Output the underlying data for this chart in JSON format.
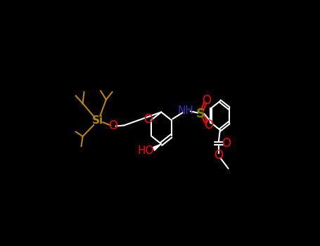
{
  "background_color": "#000000",
  "white": "#ffffff",
  "red": "#ff0000",
  "blue": "#3333bb",
  "olive": "#808000",
  "gold": "#b8860b",
  "lw": 1.5,
  "xlim": [
    0,
    9.0
  ],
  "ylim": [
    0.5,
    5.5
  ]
}
